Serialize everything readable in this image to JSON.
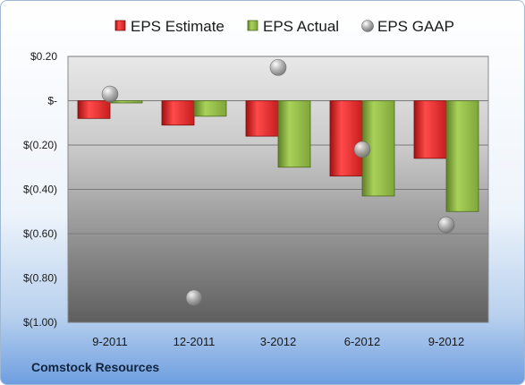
{
  "chart_data": {
    "type": "bar",
    "categories": [
      "9-2011",
      "12-2011",
      "3-2012",
      "6-2012",
      "9-2012"
    ],
    "series": [
      {
        "name": "EPS Estimate",
        "kind": "bar",
        "color": "#d42a2a",
        "values": [
          -0.08,
          -0.11,
          -0.16,
          -0.34,
          -0.26
        ]
      },
      {
        "name": "EPS Actual",
        "kind": "bar",
        "color": "#7fa63a",
        "values": [
          -0.01,
          -0.07,
          -0.3,
          -0.43,
          -0.5
        ]
      },
      {
        "name": "EPS GAAP",
        "kind": "point",
        "color": "#a6a6a6",
        "values": [
          0.03,
          -0.89,
          0.15,
          -0.22,
          -0.56
        ]
      }
    ],
    "ylim": [
      -1.0,
      0.2
    ],
    "yticks": [
      0.2,
      0,
      -0.2,
      -0.4,
      -0.6,
      -0.8,
      -1.0
    ],
    "ytick_labels": [
      "$0.20",
      "$-",
      "$(0.20)",
      "$(0.40)",
      "$(0.60)",
      "$(0.80)",
      "$(1.00)"
    ],
    "legend_position": "top",
    "grid": true
  },
  "company": "Comstock Resources"
}
